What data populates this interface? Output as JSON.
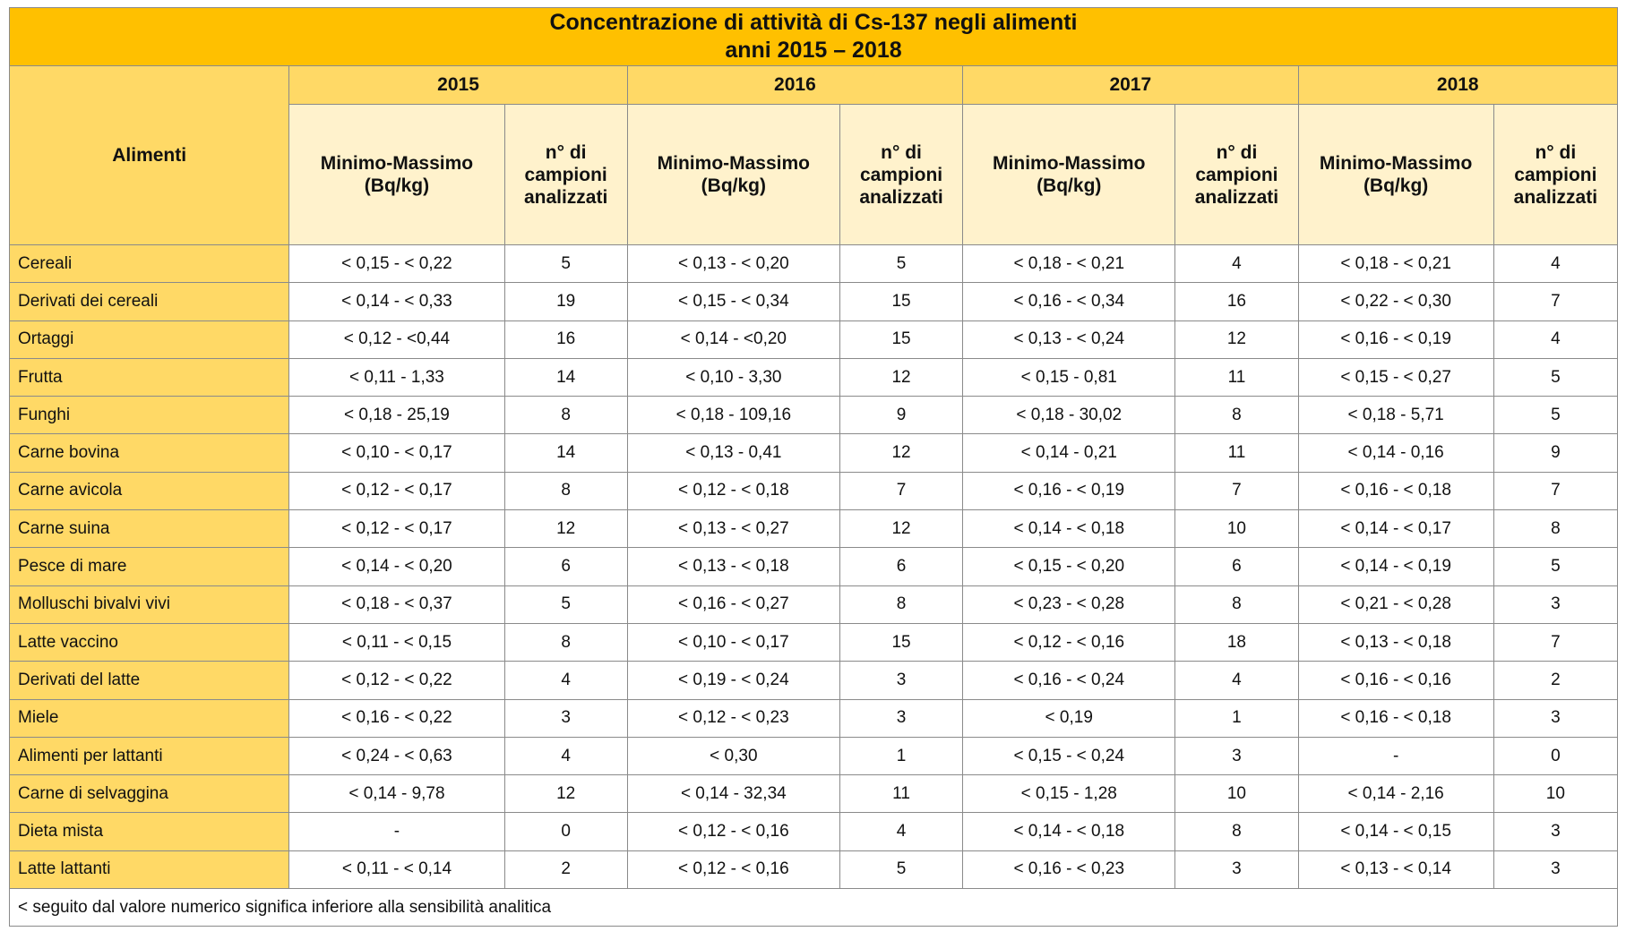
{
  "title": {
    "line1": "Concentrazione di attività di Cs-137 negli alimenti",
    "line2": "anni 2015 – 2018"
  },
  "header": {
    "food_column": "Alimenti",
    "years": [
      "2015",
      "2016",
      "2017",
      "2018"
    ],
    "range_label_line1": "Minimo-Massimo",
    "range_label_line2": "(Bq/kg)",
    "count_label_line1": "n° di",
    "count_label_line2": "campioni",
    "count_label_line3": "analizzati"
  },
  "rows": [
    {
      "food": "Cereali",
      "cells": [
        "< 0,15 - < 0,22",
        "5",
        "< 0,13 - < 0,20",
        "5",
        "< 0,18 - < 0,21",
        "4",
        "< 0,18 - < 0,21",
        "4"
      ]
    },
    {
      "food": "Derivati dei cereali",
      "cells": [
        "< 0,14 - < 0,33",
        "19",
        "< 0,15 - < 0,34",
        "15",
        "< 0,16 - < 0,34",
        "16",
        "< 0,22 - < 0,30",
        "7"
      ]
    },
    {
      "food": "Ortaggi",
      "cells": [
        "< 0,12 - <0,44",
        "16",
        "< 0,14 - <0,20",
        "15",
        "< 0,13 - < 0,24",
        "12",
        "< 0,16 - < 0,19",
        "4"
      ]
    },
    {
      "food": "Frutta",
      "cells": [
        "< 0,11 - 1,33",
        "14",
        "< 0,10 - 3,30",
        "12",
        "< 0,15 - 0,81",
        "11",
        "< 0,15 - < 0,27",
        "5"
      ]
    },
    {
      "food": "Funghi",
      "cells": [
        "< 0,18 - 25,19",
        "8",
        "< 0,18 - 109,16",
        "9",
        "< 0,18 - 30,02",
        "8",
        "< 0,18 - 5,71",
        "5"
      ]
    },
    {
      "food": "Carne bovina",
      "cells": [
        "< 0,10 - < 0,17",
        "14",
        "< 0,13 - 0,41",
        "12",
        "< 0,14 - 0,21",
        "11",
        "< 0,14 - 0,16",
        "9"
      ]
    },
    {
      "food": "Carne avicola",
      "cells": [
        "< 0,12 - < 0,17",
        "8",
        "< 0,12 - < 0,18",
        "7",
        "< 0,16 - < 0,19",
        "7",
        "< 0,16 - < 0,18",
        "7"
      ]
    },
    {
      "food": "Carne suina",
      "cells": [
        "< 0,12 - < 0,17",
        "12",
        "< 0,13 - < 0,27",
        "12",
        "< 0,14 - < 0,18",
        "10",
        "< 0,14 - < 0,17",
        "8"
      ]
    },
    {
      "food": "Pesce di mare",
      "cells": [
        "< 0,14 - < 0,20",
        "6",
        "< 0,13 - < 0,18",
        "6",
        "< 0,15 - < 0,20",
        "6",
        "< 0,14 - < 0,19",
        "5"
      ]
    },
    {
      "food": "Molluschi bivalvi vivi",
      "cells": [
        "< 0,18 - < 0,37",
        "5",
        "< 0,16 - < 0,27",
        "8",
        "< 0,23 - < 0,28",
        "8",
        "< 0,21 - < 0,28",
        "3"
      ]
    },
    {
      "food": "Latte vaccino",
      "cells": [
        "< 0,11 - < 0,15",
        "8",
        "< 0,10 - < 0,17",
        "15",
        "< 0,12 - < 0,16",
        "18",
        "< 0,13 - < 0,18",
        "7"
      ]
    },
    {
      "food": "Derivati del latte",
      "cells": [
        "< 0,12 - < 0,22",
        "4",
        "< 0,19 - < 0,24",
        "3",
        "< 0,16 - < 0,24",
        "4",
        "< 0,16 - < 0,16",
        "2"
      ]
    },
    {
      "food": "Miele",
      "cells": [
        "< 0,16 - < 0,22",
        "3",
        "< 0,12 - < 0,23",
        "3",
        "< 0,19",
        "1",
        "< 0,16 - < 0,18",
        "3"
      ]
    },
    {
      "food": "Alimenti per lattanti",
      "cells": [
        "< 0,24 - < 0,63",
        "4",
        "< 0,30",
        "1",
        "< 0,15 - < 0,24",
        "3",
        "-",
        "0"
      ]
    },
    {
      "food": "Carne di selvaggina",
      "cells": [
        "< 0,14 - 9,78",
        "12",
        "< 0,14 - 32,34",
        "11",
        "< 0,15 - 1,28",
        "10",
        "< 0,14 - 2,16",
        "10"
      ]
    },
    {
      "food": "Dieta mista",
      "cells": [
        "-",
        "0",
        "< 0,12 - < 0,16",
        "4",
        "< 0,14 - < 0,18",
        "8",
        "< 0,14 - < 0,15",
        "3"
      ]
    },
    {
      "food": "Latte lattanti",
      "cells": [
        "< 0,11 - < 0,14",
        "2",
        "< 0,12 - < 0,16",
        "5",
        "< 0,16 - < 0,23",
        "3",
        "< 0,13 - < 0,14",
        "3"
      ]
    }
  ],
  "footnote": "< seguito dal valore numerico significa inferiore alla sensibilità analitica",
  "colors": {
    "title_bg": "#ffc000",
    "header_bg": "#ffd966",
    "subheader_bg": "#fff2cc",
    "food_col_bg": "#ffd966",
    "border": "#8a8a8a"
  }
}
